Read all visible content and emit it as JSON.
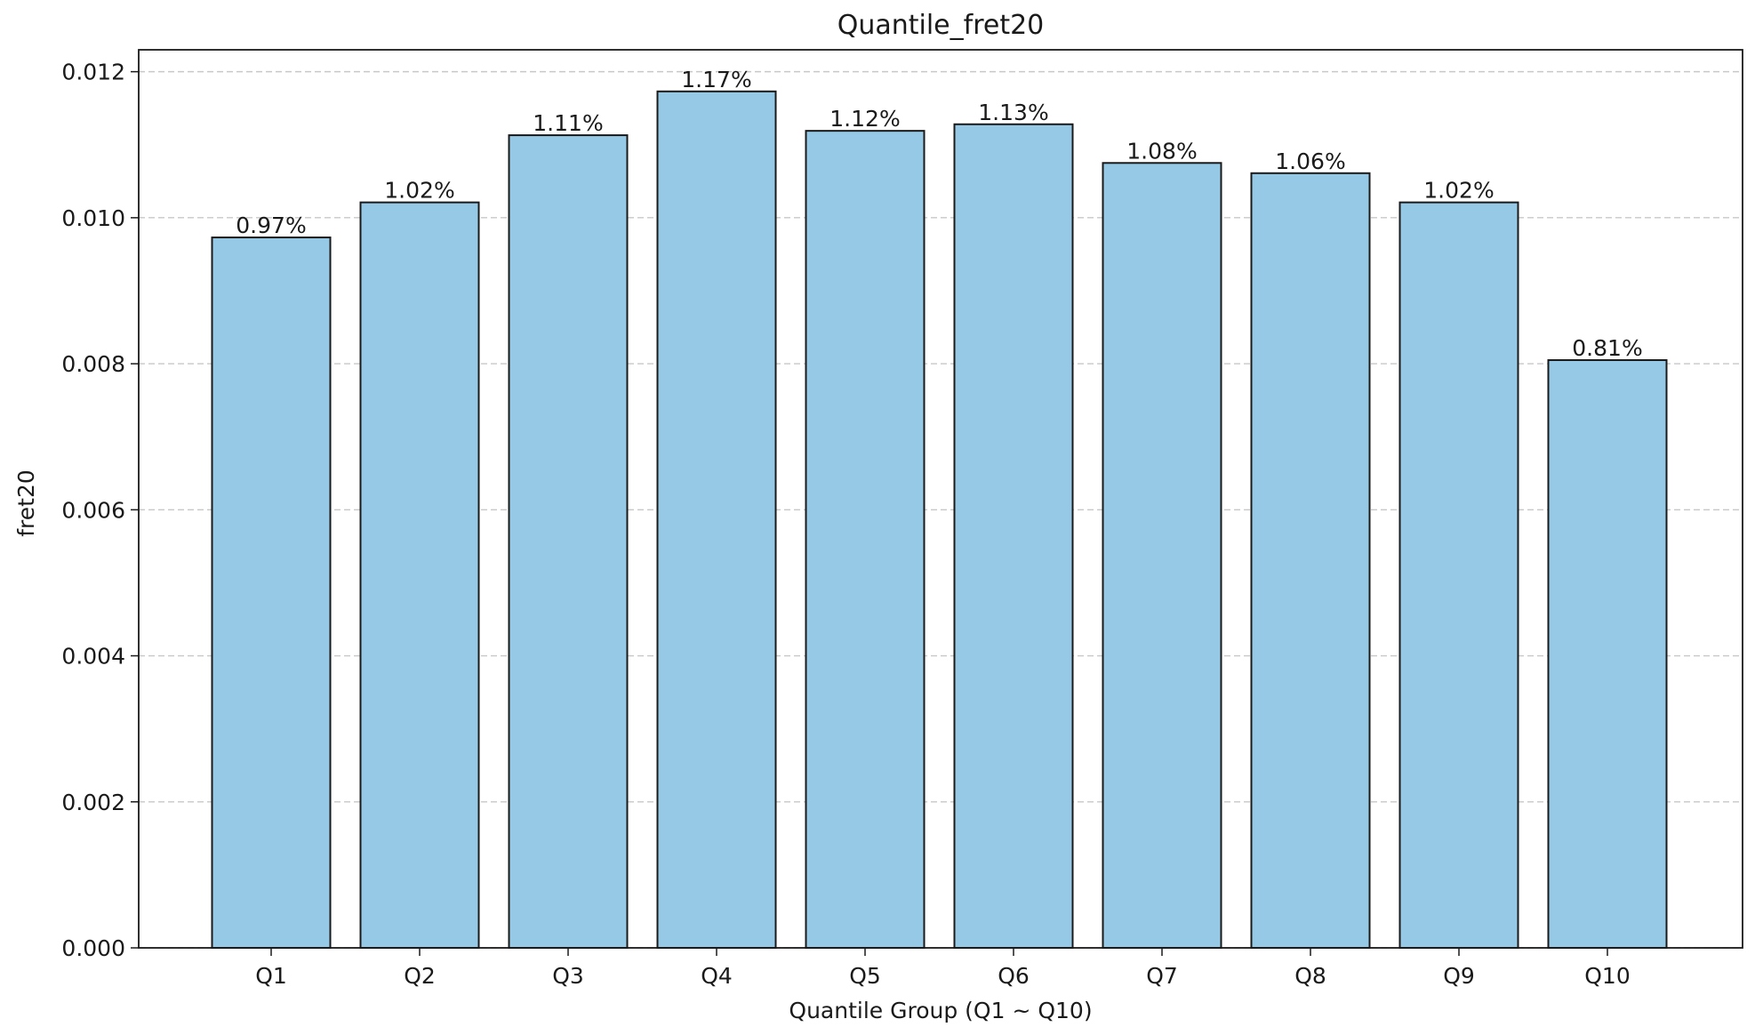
{
  "chart_data": {
    "type": "bar",
    "title": "Quantile_fret20",
    "xlabel": "Quantile Group (Q1 ~ Q10)",
    "ylabel": "fret20",
    "categories": [
      "Q1",
      "Q2",
      "Q3",
      "Q4",
      "Q5",
      "Q6",
      "Q7",
      "Q8",
      "Q9",
      "Q10"
    ],
    "values": [
      0.00973,
      0.01021,
      0.01113,
      0.01173,
      0.01119,
      0.01128,
      0.01075,
      0.01061,
      0.01021,
      0.00805
    ],
    "data_labels": [
      "0.97%",
      "1.02%",
      "1.11%",
      "1.17%",
      "1.12%",
      "1.13%",
      "1.08%",
      "1.06%",
      "1.02%",
      "0.81%"
    ],
    "ylim": [
      0,
      0.0123
    ],
    "yticks": [
      0.0,
      0.002,
      0.004,
      0.006,
      0.008,
      0.01,
      0.012
    ],
    "ytick_labels": [
      "0.000",
      "0.002",
      "0.004",
      "0.006",
      "0.008",
      "0.010",
      "0.012"
    ],
    "grid": "y-dashed",
    "legend": "none",
    "colors": {
      "bar_fill": "#95c9e6",
      "bar_edge": "#1a1a1a",
      "grid": "#c8c8c8",
      "axis": "#1a1a1a",
      "background": "#ffffff"
    }
  }
}
